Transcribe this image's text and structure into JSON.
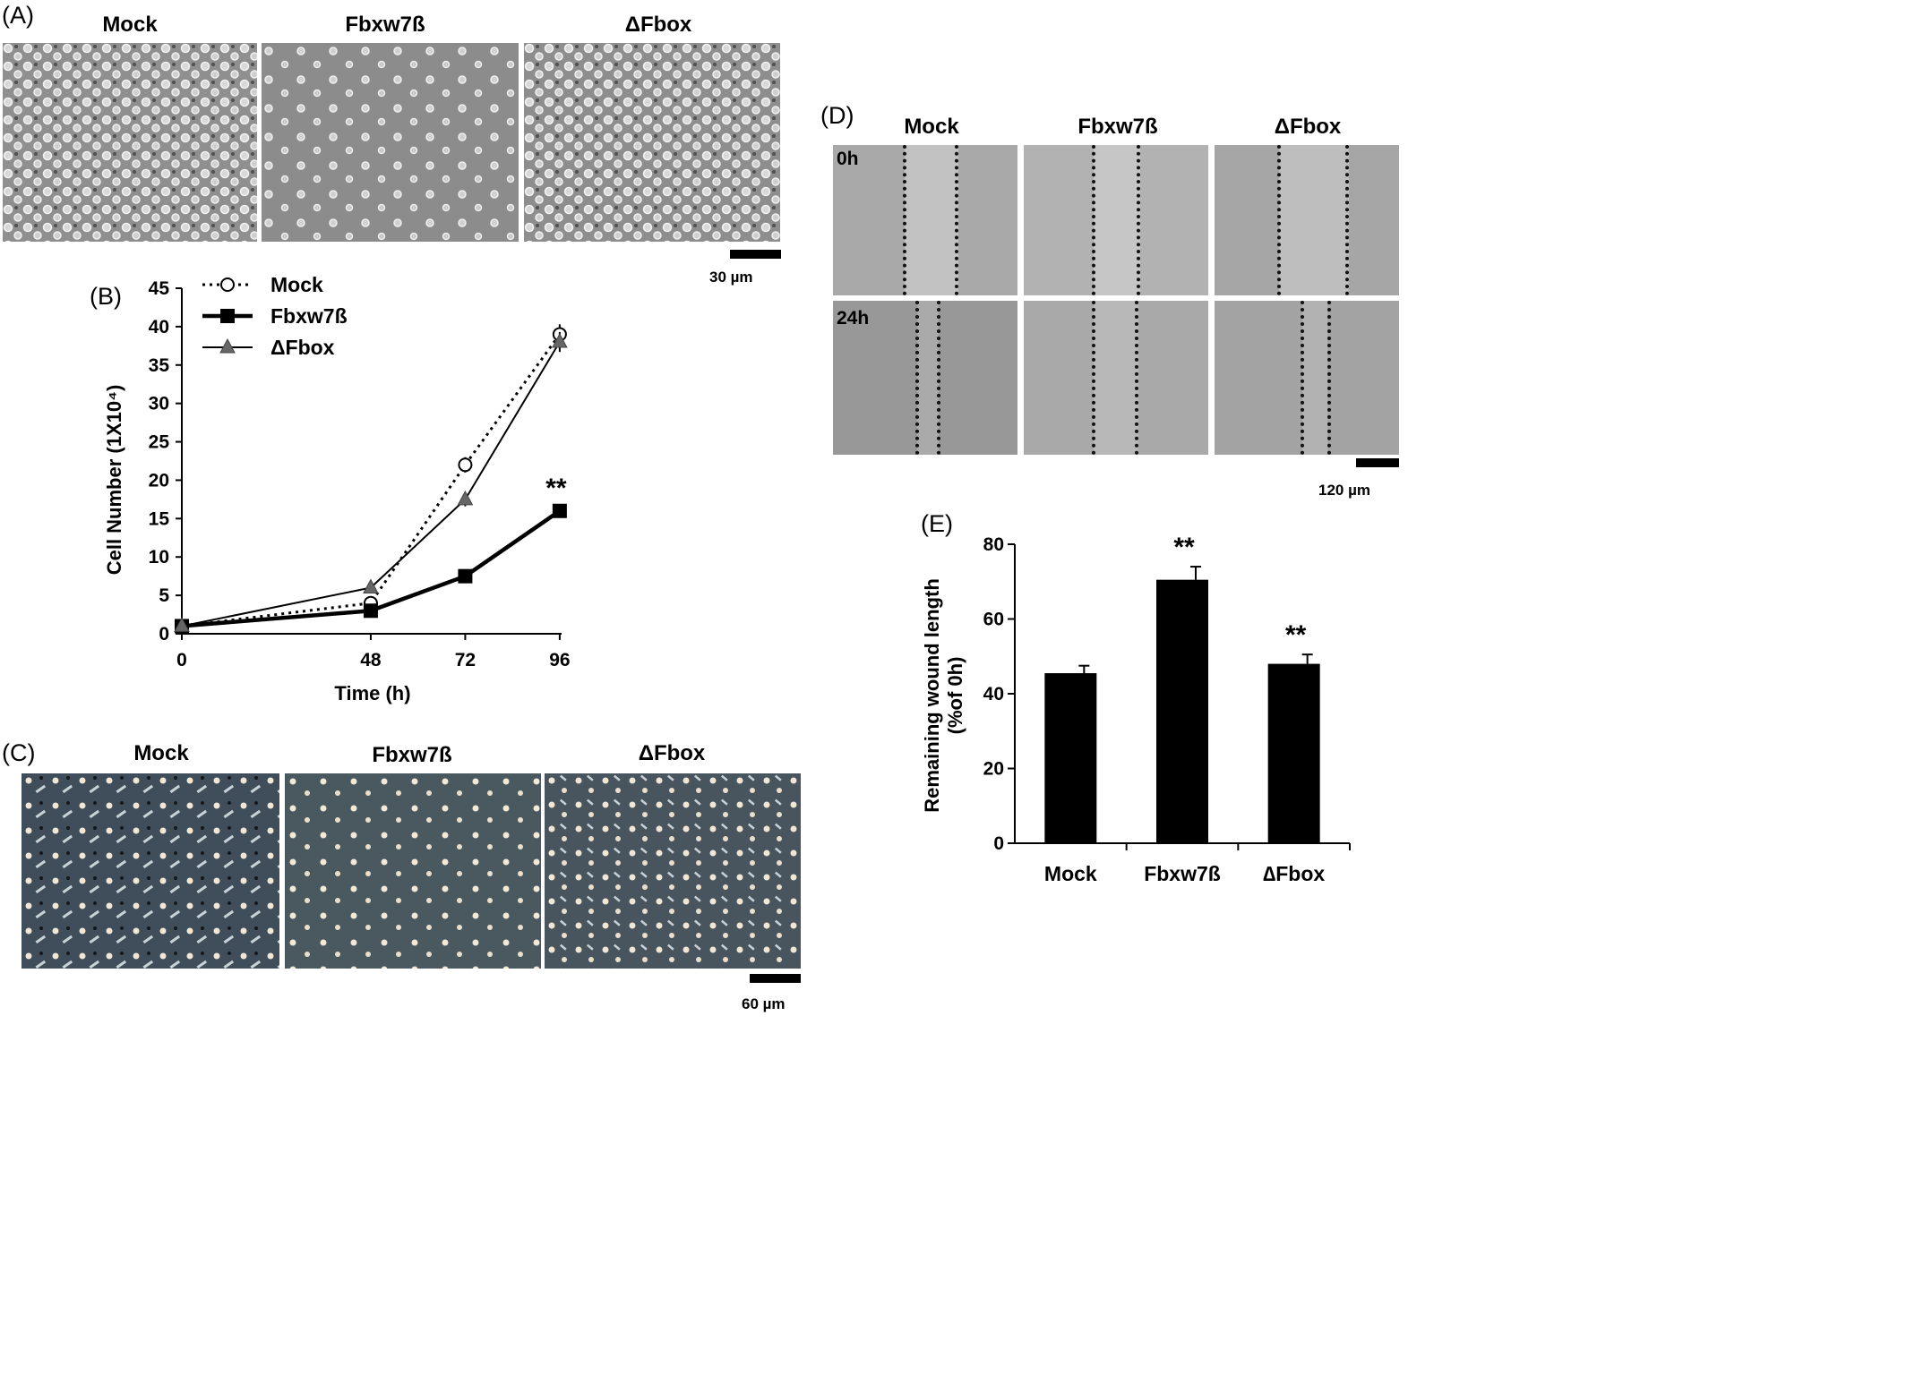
{
  "panels": {
    "A": {
      "letter": "(A)",
      "labels": [
        "Mock",
        "Fbxw7ß",
        "ΔFbox"
      ],
      "scale_text": "30 µm"
    },
    "C": {
      "letter": "(C)",
      "labels": [
        "Mock",
        "Fbxw7ß",
        "ΔFbox"
      ],
      "scale_text": "60 µm"
    },
    "D": {
      "letter": "(D)",
      "labels": [
        "Mock",
        "Fbxw7ß",
        "ΔFbox"
      ],
      "row_labels": [
        "0h",
        "24h"
      ],
      "scale_text": "120 µm"
    }
  },
  "chart_data": [
    {
      "panel": "(B)",
      "type": "line",
      "xlabel": "Time (h)",
      "ylabel": "Cell Number (1X10⁴)",
      "x": [
        0,
        48,
        72,
        96
      ],
      "xticks": [
        "0",
        "48",
        "72",
        "96"
      ],
      "ylim": [
        0,
        45
      ],
      "yticks": [
        0,
        5,
        10,
        15,
        20,
        25,
        30,
        35,
        40,
        45
      ],
      "legend_position": "top-left",
      "series": [
        {
          "name": "Mock",
          "values": [
            1,
            4,
            22,
            39
          ],
          "errors": [
            0.3,
            0.5,
            1.0,
            1.3
          ],
          "style": "dotted",
          "marker": "open-circle",
          "color": "#000000"
        },
        {
          "name": "Fbxw7ß",
          "values": [
            1,
            3,
            7.5,
            16
          ],
          "errors": [
            0.3,
            0.4,
            0.5,
            0.5
          ],
          "style": "thick",
          "marker": "filled-square",
          "color": "#000000"
        },
        {
          "name": "ΔFbox",
          "values": [
            1,
            6,
            17.5,
            38
          ],
          "errors": [
            0.3,
            0.5,
            0.9,
            1.3
          ],
          "style": "thin",
          "marker": "filled-triangle",
          "color": "#666666"
        }
      ],
      "annotations": [
        {
          "text": "**",
          "x": 96
        }
      ]
    },
    {
      "panel": "(E)",
      "type": "bar",
      "categories": [
        "Mock",
        "Fbxw7ß",
        "∆Fbox"
      ],
      "values": [
        45.5,
        70.5,
        48
      ],
      "errors": [
        2,
        3.5,
        2.5
      ],
      "ylabel": "Remaining wound length (%of 0h)",
      "ylabel_lines": [
        "Remaining wound length",
        "(%of 0h)"
      ],
      "ylim": [
        0,
        80
      ],
      "yticks": [
        0,
        20,
        40,
        60,
        80
      ],
      "bar_color": "#000000",
      "annotations": [
        "",
        "**",
        "**"
      ]
    }
  ]
}
